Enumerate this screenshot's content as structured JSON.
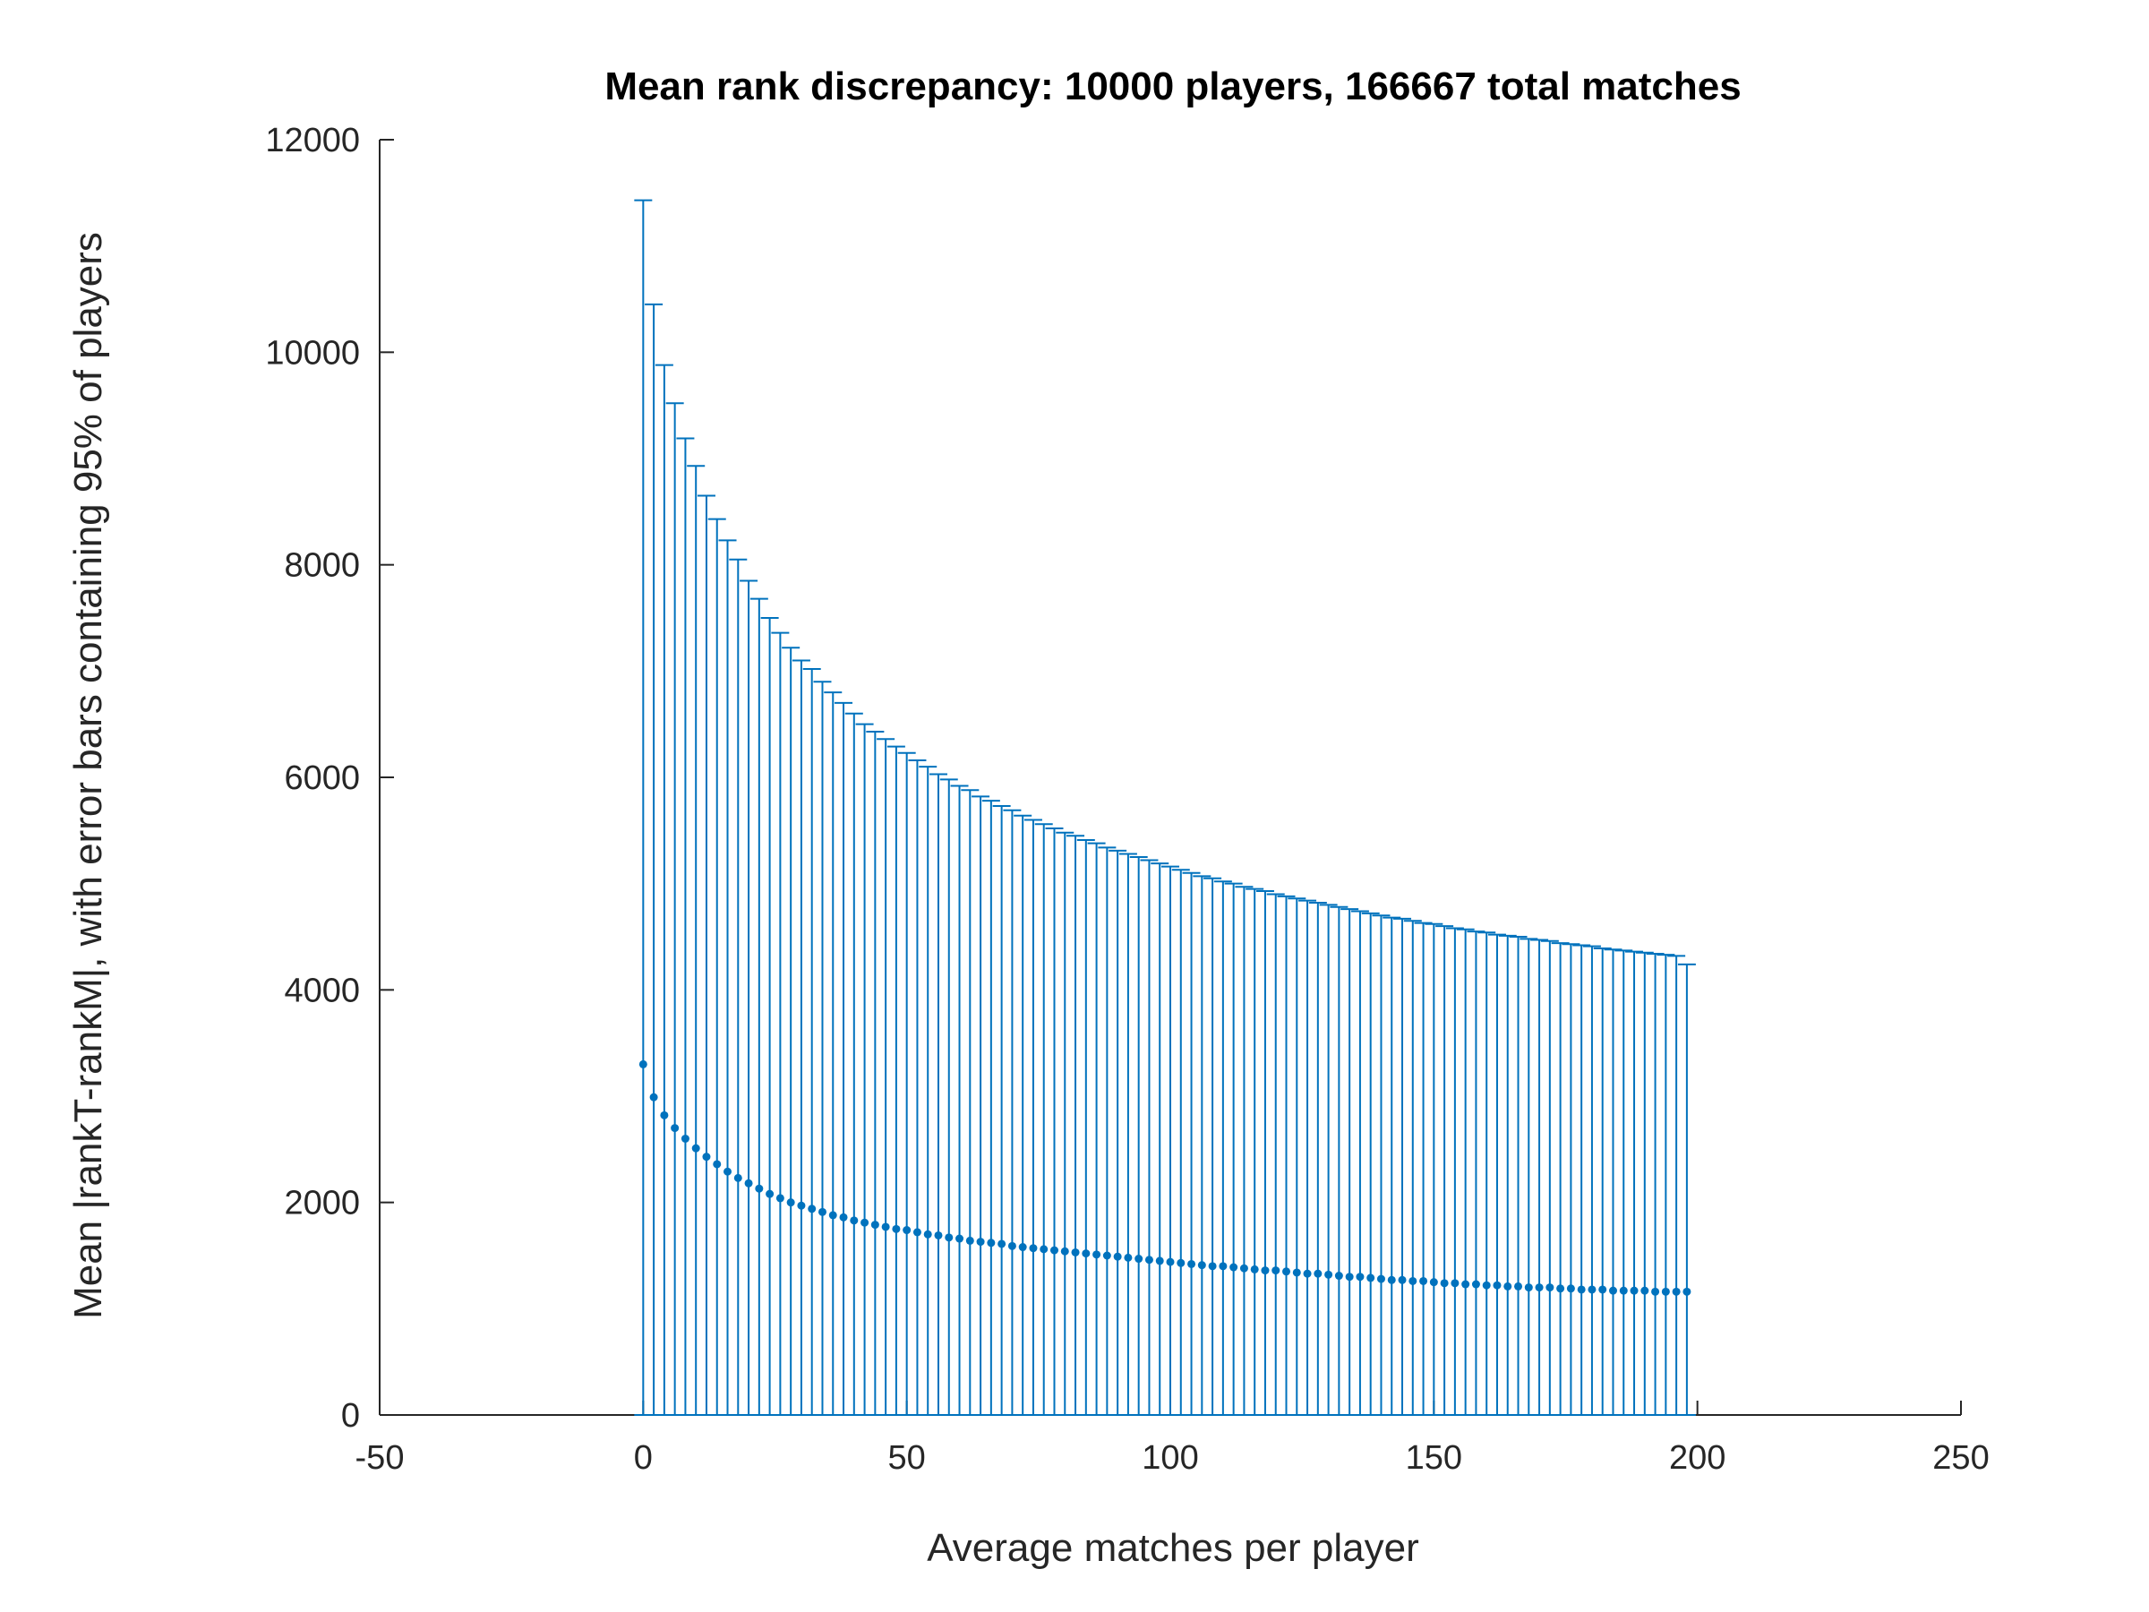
{
  "chart_data": {
    "type": "scatter",
    "title": "Mean rank discrepancy: 10000 players, 166667 total matches",
    "xlabel": "Average matches per player",
    "ylabel": "Mean |rankT-rankM|, with error bars containing 95% of players",
    "xlim": [
      -50,
      250
    ],
    "ylim": [
      0,
      12000
    ],
    "xticks": [
      -50,
      0,
      50,
      100,
      150,
      200,
      250
    ],
    "yticks": [
      0,
      2000,
      4000,
      6000,
      8000,
      10000,
      12000
    ],
    "xtick_labels": [
      "-50",
      "0",
      "50",
      "100",
      "150",
      "200",
      "250"
    ],
    "ytick_labels": [
      "0",
      "2000",
      "4000",
      "6000",
      "8000",
      "10000",
      "12000"
    ],
    "grid": false,
    "legend": "none",
    "color": "#0072bd",
    "series": [
      {
        "marker": "dot",
        "x_start": 0,
        "x_step": 2,
        "count": 100,
        "mean": [
          3300,
          2990,
          2820,
          2700,
          2600,
          2510,
          2430,
          2360,
          2290,
          2230,
          2180,
          2130,
          2080,
          2040,
          2000,
          1970,
          1940,
          1910,
          1880,
          1860,
          1830,
          1810,
          1790,
          1770,
          1750,
          1740,
          1720,
          1700,
          1690,
          1670,
          1660,
          1640,
          1630,
          1620,
          1610,
          1590,
          1580,
          1570,
          1560,
          1550,
          1540,
          1530,
          1520,
          1510,
          1500,
          1490,
          1480,
          1470,
          1460,
          1450,
          1440,
          1430,
          1420,
          1410,
          1400,
          1400,
          1390,
          1380,
          1370,
          1360,
          1360,
          1350,
          1340,
          1330,
          1330,
          1320,
          1310,
          1300,
          1300,
          1290,
          1280,
          1270,
          1270,
          1260,
          1260,
          1250,
          1240,
          1240,
          1230,
          1230,
          1220,
          1220,
          1210,
          1210,
          1200,
          1200,
          1200,
          1190,
          1190,
          1180,
          1180,
          1180,
          1170,
          1170,
          1170,
          1170,
          1160,
          1160,
          1160,
          1160
        ],
        "upper": [
          11430,
          10450,
          9880,
          9520,
          9190,
          8930,
          8650,
          8430,
          8230,
          8050,
          7850,
          7680,
          7500,
          7360,
          7220,
          7100,
          7020,
          6900,
          6800,
          6700,
          6600,
          6500,
          6430,
          6360,
          6290,
          6230,
          6160,
          6100,
          6030,
          5980,
          5920,
          5880,
          5820,
          5780,
          5730,
          5690,
          5640,
          5600,
          5560,
          5520,
          5480,
          5450,
          5410,
          5380,
          5340,
          5310,
          5280,
          5250,
          5220,
          5190,
          5160,
          5130,
          5100,
          5070,
          5050,
          5020,
          5000,
          4970,
          4950,
          4930,
          4900,
          4880,
          4860,
          4840,
          4820,
          4800,
          4780,
          4760,
          4740,
          4720,
          4700,
          4680,
          4670,
          4650,
          4630,
          4620,
          4600,
          4580,
          4570,
          4550,
          4540,
          4520,
          4510,
          4500,
          4480,
          4470,
          4460,
          4440,
          4430,
          4420,
          4410,
          4390,
          4380,
          4370,
          4360,
          4350,
          4340,
          4330,
          4320,
          4240
        ],
        "lower": 0
      }
    ]
  }
}
